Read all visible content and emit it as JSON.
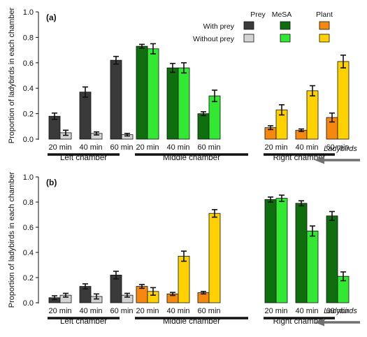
{
  "chart_data": [
    {
      "type": "bar",
      "panel_label": "(a)",
      "ylabel": "Proportion of ladybirds in each chamber",
      "ylim": [
        0,
        1.0
      ],
      "yticks": [
        "0.0",
        "0.2",
        "0.4",
        "0.6",
        "0.8",
        "1.0"
      ],
      "times": [
        "20 min",
        "40 min",
        "60 min"
      ],
      "chambers": [
        {
          "name": "Left chamber",
          "treatment": "Prey",
          "with": {
            "values": [
              0.18,
              0.37,
              0.62
            ],
            "err": [
              0.025,
              0.04,
              0.03
            ]
          },
          "without": {
            "values": [
              0.05,
              0.045,
              0.035
            ],
            "err": [
              0.02,
              0.012,
              0.01
            ]
          }
        },
        {
          "name": "Middle chamber",
          "treatment": "MeSA",
          "with": {
            "values": [
              0.73,
              0.56,
              0.2
            ],
            "err": [
              0.015,
              0.035,
              0.015
            ]
          },
          "without": {
            "values": [
              0.71,
              0.56,
              0.34
            ],
            "err": [
              0.04,
              0.04,
              0.045
            ]
          }
        },
        {
          "name": "Right chamber",
          "treatment": "Plant",
          "with": {
            "values": [
              0.09,
              0.07,
              0.17
            ],
            "err": [
              0.015,
              0.01,
              0.035
            ]
          },
          "without": {
            "values": [
              0.23,
              0.38,
              0.61
            ],
            "err": [
              0.04,
              0.04,
              0.05
            ]
          }
        }
      ],
      "arrow_label": "Ladybirds"
    },
    {
      "type": "bar",
      "panel_label": "(b)",
      "ylabel": "Proportion of ladybirds in each chamber",
      "ylim": [
        0,
        1.0
      ],
      "yticks": [
        "0.0",
        "0.2",
        "0.4",
        "0.6",
        "0.8",
        "1.0"
      ],
      "times": [
        "20 min",
        "40 min",
        "60 min"
      ],
      "chambers": [
        {
          "name": "Left chamber",
          "treatment": "Prey",
          "with": {
            "values": [
              0.04,
              0.13,
              0.22
            ],
            "err": [
              0.015,
              0.02,
              0.03
            ]
          },
          "without": {
            "values": [
              0.06,
              0.05,
              0.06
            ],
            "err": [
              0.015,
              0.02,
              0.015
            ]
          }
        },
        {
          "name": "Middle chamber",
          "treatment": "Plant",
          "with": {
            "values": [
              0.13,
              0.07,
              0.08
            ],
            "err": [
              0.015,
              0.012,
              0.01
            ]
          },
          "without": {
            "values": [
              0.09,
              0.37,
              0.71
            ],
            "err": [
              0.03,
              0.04,
              0.03
            ]
          }
        },
        {
          "name": "Right chamber",
          "treatment": "MeSA",
          "with": {
            "values": [
              0.82,
              0.79,
              0.69
            ],
            "err": [
              0.02,
              0.02,
              0.035
            ]
          },
          "without": {
            "values": [
              0.83,
              0.57,
              0.21
            ],
            "err": [
              0.025,
              0.04,
              0.035
            ]
          }
        }
      ],
      "arrow_label": "Ladybirds"
    }
  ],
  "legend": {
    "columns": [
      "Prey",
      "MeSA",
      "Plant"
    ],
    "rows": [
      "With prey",
      "Without prey"
    ]
  },
  "colors": {
    "Prey": {
      "with": "#3a3a3a",
      "without": "#d4d4d4"
    },
    "MeSA": {
      "with": "#0f6f0f",
      "without": "#33e833"
    },
    "Plant": {
      "with": "#f5890f",
      "without": "#ffd100"
    },
    "arrow": "#707070"
  }
}
